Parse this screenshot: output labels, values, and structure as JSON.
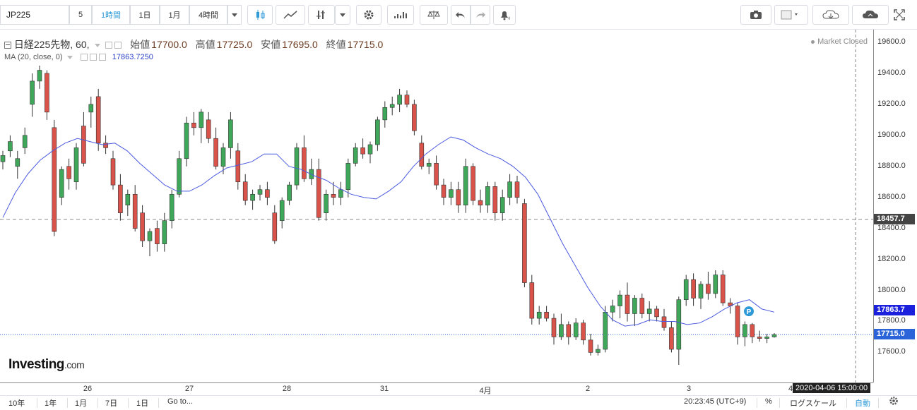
{
  "toolbar": {
    "symbol": "JP225",
    "interval_num": "5",
    "intervals": [
      "1時間",
      "1日",
      "1月",
      "4時間"
    ],
    "icons": [
      "candle-style-icon",
      "line-style-icon",
      "indicators-icon",
      "settings-icon",
      "chart-templates-icon",
      "compare-icon",
      "undo-icon",
      "redo-icon",
      "alert-icon",
      "camera-icon",
      "color-icon",
      "cloud-download-icon",
      "cloud-upload-icon",
      "fullscreen-icon"
    ]
  },
  "legend": {
    "title": "日経225先物, 60,",
    "open_label": "始値",
    "open": "17700.0",
    "high_label": "高値",
    "high": "17725.0",
    "low_label": "安値",
    "low": "17695.0",
    "close_label": "終値",
    "close": "17715.0",
    "ma_label": "MA (20, close, 0)",
    "ma_value": "17863.7250"
  },
  "status": "Market Closed",
  "logo": {
    "main": "Investing",
    "dom": ".com"
  },
  "price_labels": {
    "crosshair": "18457.7",
    "ma": "17863.7",
    "last": "17715.0"
  },
  "time_label": "2020-04-06 15:00:00",
  "marker_label": "P",
  "bottom": {
    "ranges": [
      "10年",
      "1年",
      "1月",
      "7日",
      "1日"
    ],
    "goto": "Go to...",
    "clock": "20:23:45 (UTC+9)",
    "pct": "%",
    "log": "ログスケール",
    "auto": "自動"
  },
  "colors": {
    "up": "#3fa75a",
    "down": "#d9534a",
    "ma": "#4b5ae0",
    "crosshair_box": "#444444",
    "ma_box": "#1b20dd",
    "last_box": "#2b63d8"
  },
  "chart_data": {
    "type": "candlestick",
    "title": "日経225先物, 60,",
    "y_ticks": [
      17600,
      17800,
      18000,
      18200,
      18400,
      18600,
      18800,
      19000,
      19200,
      19400,
      19600
    ],
    "ylim": [
      17402,
      19672
    ],
    "x_ticks": [
      "26",
      "27",
      "28",
      "31",
      "4月",
      "2",
      "3",
      "4"
    ],
    "crosshair_price": 18457.7,
    "last_price": 17715.0,
    "ma_last": 17863.725,
    "series": [
      {
        "name": "MA (20, close, 0)",
        "values": [
          18470,
          18630,
          18750,
          18840,
          18900,
          18950,
          18980,
          18960,
          18940,
          18950,
          18900,
          18820,
          18750,
          18680,
          18640,
          18640,
          18680,
          18740,
          18790,
          18810,
          18830,
          18880,
          18880,
          18800,
          18780,
          18740,
          18710,
          18660,
          18620,
          18600,
          18590,
          18640,
          18700,
          18800,
          18880,
          18940,
          18990,
          18970,
          18920,
          18880,
          18850,
          18800,
          18730,
          18620,
          18460,
          18300,
          18160,
          18020,
          17900,
          17810,
          17770,
          17780,
          17810,
          17800,
          17800,
          17780,
          17790,
          17830,
          17880,
          17920,
          17940,
          17880,
          17860
        ]
      }
    ],
    "candles": [
      {
        "o": 18830,
        "h": 18900,
        "l": 18780,
        "c": 18870
      },
      {
        "o": 18900,
        "h": 19000,
        "l": 18860,
        "c": 18960
      },
      {
        "o": 18800,
        "h": 18900,
        "l": 18720,
        "c": 18850
      },
      {
        "o": 18920,
        "h": 19050,
        "l": 18880,
        "c": 19000
      },
      {
        "o": 19200,
        "h": 19400,
        "l": 19120,
        "c": 19350
      },
      {
        "o": 19350,
        "h": 19450,
        "l": 19300,
        "c": 19420
      },
      {
        "o": 19400,
        "h": 19420,
        "l": 19100,
        "c": 19150
      },
      {
        "o": 19050,
        "h": 19100,
        "l": 18350,
        "c": 18380
      },
      {
        "o": 18600,
        "h": 18800,
        "l": 18550,
        "c": 18780
      },
      {
        "o": 18800,
        "h": 18850,
        "l": 18650,
        "c": 18720
      },
      {
        "o": 18700,
        "h": 18950,
        "l": 18650,
        "c": 18920
      },
      {
        "o": 19060,
        "h": 19150,
        "l": 18800,
        "c": 18820
      },
      {
        "o": 19150,
        "h": 19250,
        "l": 19050,
        "c": 19200
      },
      {
        "o": 19250,
        "h": 19300,
        "l": 18900,
        "c": 18950
      },
      {
        "o": 18950,
        "h": 19000,
        "l": 18880,
        "c": 18920
      },
      {
        "o": 18850,
        "h": 18900,
        "l": 18650,
        "c": 18680
      },
      {
        "o": 18680,
        "h": 18750,
        "l": 18450,
        "c": 18500
      },
      {
        "o": 18550,
        "h": 18650,
        "l": 18480,
        "c": 18620
      },
      {
        "o": 18620,
        "h": 18680,
        "l": 18380,
        "c": 18400
      },
      {
        "o": 18500,
        "h": 18550,
        "l": 18280,
        "c": 18320
      },
      {
        "o": 18320,
        "h": 18400,
        "l": 18220,
        "c": 18380
      },
      {
        "o": 18400,
        "h": 18450,
        "l": 18250,
        "c": 18300
      },
      {
        "o": 18300,
        "h": 18500,
        "l": 18250,
        "c": 18450
      },
      {
        "o": 18450,
        "h": 18650,
        "l": 18400,
        "c": 18620
      },
      {
        "o": 18620,
        "h": 18900,
        "l": 18600,
        "c": 18850
      },
      {
        "o": 18850,
        "h": 19120,
        "l": 18800,
        "c": 19080
      },
      {
        "o": 19080,
        "h": 19150,
        "l": 19000,
        "c": 19050
      },
      {
        "o": 19050,
        "h": 19170,
        "l": 18950,
        "c": 19150
      },
      {
        "o": 19100,
        "h": 19150,
        "l": 18950,
        "c": 18980
      },
      {
        "o": 18980,
        "h": 19050,
        "l": 18780,
        "c": 18800
      },
      {
        "o": 18800,
        "h": 18950,
        "l": 18750,
        "c": 18920
      },
      {
        "o": 18920,
        "h": 19150,
        "l": 18850,
        "c": 19100
      },
      {
        "o": 18900,
        "h": 18950,
        "l": 18650,
        "c": 18700
      },
      {
        "o": 18700,
        "h": 18750,
        "l": 18550,
        "c": 18580
      },
      {
        "o": 18580,
        "h": 18650,
        "l": 18520,
        "c": 18620
      },
      {
        "o": 18620,
        "h": 18680,
        "l": 18580,
        "c": 18650
      },
      {
        "o": 18650,
        "h": 18700,
        "l": 18550,
        "c": 18600
      },
      {
        "o": 18500,
        "h": 18550,
        "l": 18300,
        "c": 18320
      },
      {
        "o": 18450,
        "h": 18600,
        "l": 18400,
        "c": 18580
      },
      {
        "o": 18580,
        "h": 18700,
        "l": 18550,
        "c": 18680
      },
      {
        "o": 18680,
        "h": 18950,
        "l": 18650,
        "c": 18920
      },
      {
        "o": 18920,
        "h": 19000,
        "l": 18700,
        "c": 18720
      },
      {
        "o": 18720,
        "h": 18850,
        "l": 18680,
        "c": 18780
      },
      {
        "o": 18780,
        "h": 18850,
        "l": 18450,
        "c": 18470
      },
      {
        "o": 18500,
        "h": 18650,
        "l": 18450,
        "c": 18620
      },
      {
        "o": 18620,
        "h": 18700,
        "l": 18550,
        "c": 18600
      },
      {
        "o": 18600,
        "h": 18700,
        "l": 18550,
        "c": 18650
      },
      {
        "o": 18650,
        "h": 18850,
        "l": 18600,
        "c": 18820
      },
      {
        "o": 18820,
        "h": 18950,
        "l": 18800,
        "c": 18920
      },
      {
        "o": 18920,
        "h": 18980,
        "l": 18850,
        "c": 18880
      },
      {
        "o": 18880,
        "h": 18960,
        "l": 18820,
        "c": 18940
      },
      {
        "o": 18940,
        "h": 19120,
        "l": 18900,
        "c": 19100
      },
      {
        "o": 19100,
        "h": 19220,
        "l": 19050,
        "c": 19180
      },
      {
        "o": 19180,
        "h": 19250,
        "l": 19130,
        "c": 19200
      },
      {
        "o": 19200,
        "h": 19300,
        "l": 19150,
        "c": 19260
      },
      {
        "o": 19260,
        "h": 19290,
        "l": 19180,
        "c": 19200
      },
      {
        "o": 19200,
        "h": 19230,
        "l": 19000,
        "c": 19030
      },
      {
        "o": 18950,
        "h": 19000,
        "l": 18780,
        "c": 18800
      },
      {
        "o": 18800,
        "h": 18850,
        "l": 18750,
        "c": 18820
      },
      {
        "o": 18820,
        "h": 18870,
        "l": 18650,
        "c": 18680
      },
      {
        "o": 18680,
        "h": 18720,
        "l": 18550,
        "c": 18600
      },
      {
        "o": 18600,
        "h": 18700,
        "l": 18550,
        "c": 18650
      },
      {
        "o": 18650,
        "h": 18700,
        "l": 18500,
        "c": 18550
      },
      {
        "o": 18550,
        "h": 18850,
        "l": 18500,
        "c": 18800
      },
      {
        "o": 18800,
        "h": 18820,
        "l": 18550,
        "c": 18580
      },
      {
        "o": 18580,
        "h": 18650,
        "l": 18500,
        "c": 18550
      },
      {
        "o": 18550,
        "h": 18700,
        "l": 18500,
        "c": 18670
      },
      {
        "o": 18670,
        "h": 18700,
        "l": 18450,
        "c": 18500
      },
      {
        "o": 18500,
        "h": 18650,
        "l": 18450,
        "c": 18600
      },
      {
        "o": 18600,
        "h": 18750,
        "l": 18550,
        "c": 18700
      },
      {
        "o": 18700,
        "h": 18740,
        "l": 18560,
        "c": 18600
      },
      {
        "o": 18560,
        "h": 18590,
        "l": 18020,
        "c": 18050
      },
      {
        "o": 18050,
        "h": 18100,
        "l": 17780,
        "c": 17820
      },
      {
        "o": 17820,
        "h": 17900,
        "l": 17780,
        "c": 17860
      },
      {
        "o": 17860,
        "h": 17900,
        "l": 17800,
        "c": 17820
      },
      {
        "o": 17820,
        "h": 17850,
        "l": 17650,
        "c": 17700
      },
      {
        "o": 17700,
        "h": 17850,
        "l": 17680,
        "c": 17780
      },
      {
        "o": 17780,
        "h": 17800,
        "l": 17650,
        "c": 17700
      },
      {
        "o": 17700,
        "h": 17820,
        "l": 17680,
        "c": 17790
      },
      {
        "o": 17790,
        "h": 17810,
        "l": 17650,
        "c": 17680
      },
      {
        "o": 17680,
        "h": 17720,
        "l": 17580,
        "c": 17600
      },
      {
        "o": 17600,
        "h": 17650,
        "l": 17580,
        "c": 17620
      },
      {
        "o": 17620,
        "h": 17900,
        "l": 17600,
        "c": 17860
      },
      {
        "o": 17860,
        "h": 17940,
        "l": 17800,
        "c": 17900
      },
      {
        "o": 17900,
        "h": 18000,
        "l": 17820,
        "c": 17970
      },
      {
        "o": 17970,
        "h": 18050,
        "l": 17800,
        "c": 17850
      },
      {
        "o": 17850,
        "h": 17970,
        "l": 17770,
        "c": 17950
      },
      {
        "o": 17950,
        "h": 17980,
        "l": 17820,
        "c": 17850
      },
      {
        "o": 17850,
        "h": 17930,
        "l": 17800,
        "c": 17880
      },
      {
        "o": 17880,
        "h": 17900,
        "l": 17800,
        "c": 17830
      },
      {
        "o": 17830,
        "h": 17880,
        "l": 17740,
        "c": 17760
      },
      {
        "o": 17760,
        "h": 17800,
        "l": 17600,
        "c": 17620
      },
      {
        "o": 17620,
        "h": 17960,
        "l": 17520,
        "c": 17940
      },
      {
        "o": 17940,
        "h": 18100,
        "l": 17900,
        "c": 18070
      },
      {
        "o": 18070,
        "h": 18110,
        "l": 17900,
        "c": 17950
      },
      {
        "o": 17950,
        "h": 18060,
        "l": 17880,
        "c": 18040
      },
      {
        "o": 18040,
        "h": 18120,
        "l": 17940,
        "c": 17980
      },
      {
        "o": 17980,
        "h": 18130,
        "l": 17950,
        "c": 18100
      },
      {
        "o": 18100,
        "h": 18130,
        "l": 17900,
        "c": 17920
      },
      {
        "o": 17920,
        "h": 17950,
        "l": 17850,
        "c": 17900
      },
      {
        "o": 17900,
        "h": 17920,
        "l": 17650,
        "c": 17700
      },
      {
        "o": 17700,
        "h": 17800,
        "l": 17640,
        "c": 17780
      },
      {
        "o": 17780,
        "h": 17790,
        "l": 17660,
        "c": 17700
      },
      {
        "o": 17700,
        "h": 17740,
        "l": 17670,
        "c": 17690
      },
      {
        "o": 17690,
        "h": 17720,
        "l": 17660,
        "c": 17700
      },
      {
        "o": 17700,
        "h": 17725,
        "l": 17695,
        "c": 17715
      }
    ]
  }
}
